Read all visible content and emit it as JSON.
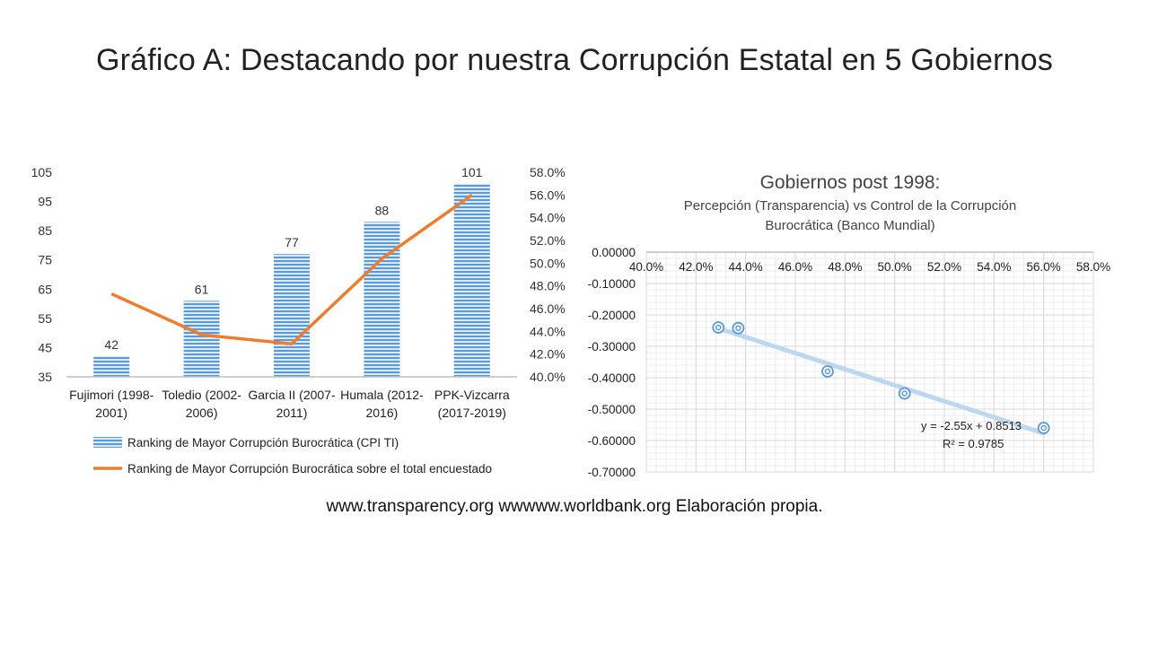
{
  "slide": {
    "title": "Gráfico A: Destacando por nuestra Corrupción Estatal en 5 Gobiernos",
    "source": "www.transparency.org wwwww.worldbank.org Elaboración propia."
  },
  "colors": {
    "bar": "#5b9bd5",
    "line": "#ed7d31",
    "point": "#5b9bd5",
    "trend": "#bdd7ee",
    "grid": "#d9d9d9",
    "axis": "#bfbfbf"
  },
  "chart_data": [
    {
      "type": "bar",
      "categories": [
        [
          "Fujimori (1998-",
          "2001)"
        ],
        [
          "Toledio (2002-",
          "2006)"
        ],
        [
          "Garcia II (2007-",
          "2011)"
        ],
        [
          "Humala (2012-",
          "2016)"
        ],
        [
          "PPK-Vizcarra",
          "(2017-2019)"
        ]
      ],
      "series": [
        {
          "name": "Ranking de Mayor Corrupción Burocrática (CPI TI)",
          "type": "bar",
          "axis": "left",
          "values": [
            42,
            61,
            77,
            88,
            101
          ],
          "data_labels": [
            "42",
            "61",
            "77",
            "88",
            "101"
          ]
        },
        {
          "name": "Ranking de Mayor Corrupción Burocrática sobre el total encuestado",
          "type": "line",
          "axis": "right",
          "values": [
            0.473,
            0.437,
            0.429,
            0.504,
            0.56
          ]
        }
      ],
      "left_axis": {
        "ylim": [
          35,
          105
        ],
        "ticks": [
          "105",
          "95",
          "85",
          "75",
          "65",
          "55",
          "45",
          "35"
        ],
        "tick_values": [
          105,
          95,
          85,
          75,
          65,
          55,
          45,
          35
        ]
      },
      "right_axis": {
        "ylim": [
          0.4,
          0.58
        ],
        "ticks": [
          "58.0%",
          "56.0%",
          "54.0%",
          "52.0%",
          "50.0%",
          "48.0%",
          "46.0%",
          "44.0%",
          "42.0%",
          "40.0%"
        ],
        "tick_values": [
          0.58,
          0.56,
          0.54,
          0.52,
          0.5,
          0.48,
          0.46,
          0.44,
          0.42,
          0.4
        ]
      },
      "legend_position": "bottom",
      "grid": false
    },
    {
      "type": "scatter",
      "title": "Gobiernos post 1998:",
      "subtitle": [
        "Percepción (Transparencia) vs Control de la Corrupción",
        "Burocrática (Banco Mundial)"
      ],
      "points": [
        {
          "x": 0.429,
          "y": -0.24
        },
        {
          "x": 0.437,
          "y": -0.242
        },
        {
          "x": 0.473,
          "y": -0.38
        },
        {
          "x": 0.504,
          "y": -0.45
        },
        {
          "x": 0.56,
          "y": -0.56
        }
      ],
      "trendline": {
        "slope": -2.55,
        "intercept": 0.8513,
        "equation": "y = -2.55x + 0.8513",
        "r2": "R² = 0.9785",
        "x_range": [
          0.429,
          0.56
        ]
      },
      "xlim": [
        0.4,
        0.58
      ],
      "ylim": [
        -0.7,
        0.0
      ],
      "x_ticks": [
        "40.0%",
        "42.0%",
        "44.0%",
        "46.0%",
        "48.0%",
        "50.0%",
        "52.0%",
        "54.0%",
        "56.0%",
        "58.0%"
      ],
      "x_tick_values": [
        0.4,
        0.42,
        0.44,
        0.46,
        0.48,
        0.5,
        0.52,
        0.54,
        0.56,
        0.58
      ],
      "y_ticks": [
        "0.00000",
        "-0.10000",
        "-0.20000",
        "-0.30000",
        "-0.40000",
        "-0.50000",
        "-0.60000",
        "-0.70000"
      ],
      "y_tick_values": [
        0.0,
        -0.1,
        -0.2,
        -0.3,
        -0.4,
        -0.5,
        -0.6,
        -0.7
      ],
      "x_axis_position": "top",
      "grid": true
    }
  ]
}
